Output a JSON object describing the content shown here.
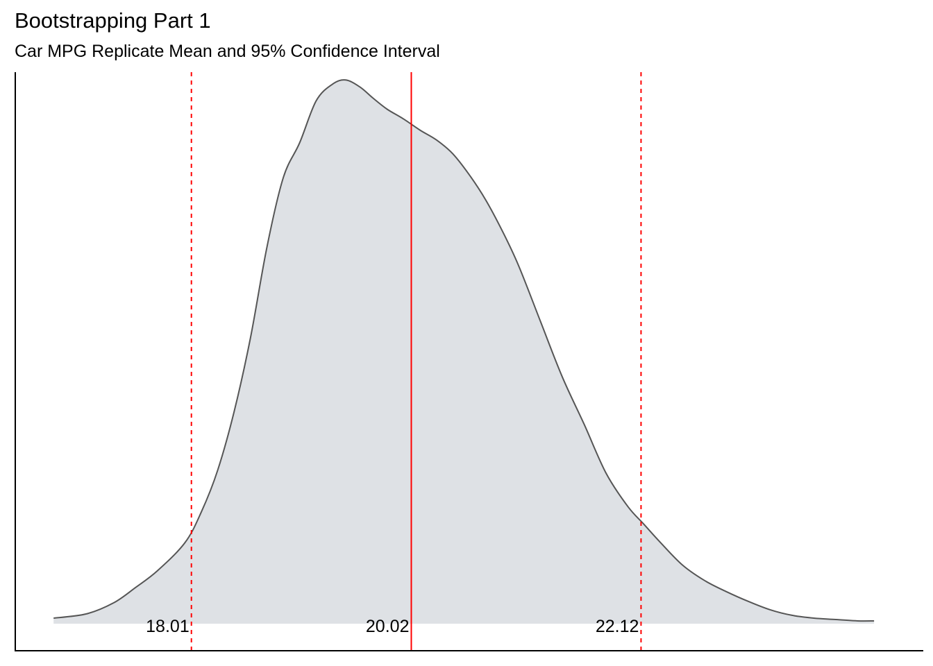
{
  "chart_data": {
    "type": "area",
    "title": "Bootstrapping Part 1",
    "subtitle": "Car MPG Replicate Mean and 95% Confidence Interval",
    "xlabel": "",
    "ylabel": "",
    "xlim": [
      16.4,
      24.7
    ],
    "ylim": [
      0,
      0.42
    ],
    "grid": false,
    "fill_color": "#dee1e5",
    "line_color": "#555555",
    "ref_line_color": "#ff0000",
    "density": {
      "x": [
        16.75,
        17.05,
        17.3,
        17.5,
        17.7,
        17.95,
        18.1,
        18.25,
        18.4,
        18.55,
        18.7,
        18.85,
        19.0,
        19.15,
        19.3,
        19.42,
        19.55,
        19.67,
        19.8,
        19.95,
        20.1,
        20.25,
        20.4,
        20.55,
        20.7,
        20.85,
        21.0,
        21.2,
        21.4,
        21.6,
        21.8,
        22.0,
        22.15,
        22.3,
        22.5,
        22.7,
        22.9,
        23.1,
        23.3,
        23.5,
        23.7,
        23.9,
        24.1,
        24.25
      ],
      "y": [
        0.004,
        0.007,
        0.015,
        0.026,
        0.038,
        0.058,
        0.08,
        0.11,
        0.152,
        0.205,
        0.27,
        0.32,
        0.345,
        0.375,
        0.387,
        0.39,
        0.385,
        0.377,
        0.369,
        0.362,
        0.354,
        0.347,
        0.337,
        0.322,
        0.304,
        0.282,
        0.257,
        0.217,
        0.177,
        0.143,
        0.108,
        0.084,
        0.071,
        0.058,
        0.042,
        0.031,
        0.023,
        0.016,
        0.01,
        0.006,
        0.004,
        0.003,
        0.002,
        0.002
      ]
    },
    "reference_lines": [
      {
        "value": 18.01,
        "label": "18.01",
        "style": "dashed"
      },
      {
        "value": 20.02,
        "label": "20.02",
        "style": "solid"
      },
      {
        "value": 22.12,
        "label": "22.12",
        "style": "dashed"
      }
    ]
  }
}
